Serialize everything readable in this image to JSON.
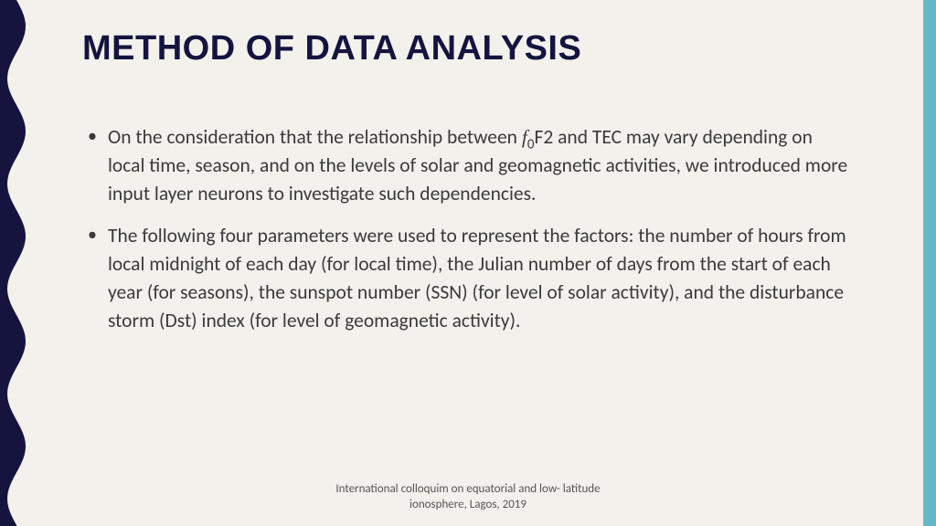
{
  "colors": {
    "background": "#f2f1ec",
    "title": "#14143f",
    "body_text": "#3a3a3a",
    "wave_fill": "#14143f",
    "right_bar": "#62b8c9",
    "footer_text": "#555555"
  },
  "title": "METHOD OF DATA ANALYSIS",
  "bullets": [
    {
      "pre": "On the consideration that the relationship between ",
      "sym_f": "f",
      "sym_sub": "0",
      "post": "F2 and TEC may vary depending on local time, season, and on the levels of solar and geomagnetic activities, we introduced more input layer neurons to investigate such dependencies."
    },
    {
      "text": "The following four parameters were used to represent the factors: the number of hours from local midnight of each day (for local time), the Julian number of days from the start of each year (for seasons), the sunspot number (SSN) (for level of solar activity), and the disturbance storm (Dst) index (for level of geomagnetic activity)."
    }
  ],
  "footer_line1": "International colloquim on equatorial and low- latitude",
  "footer_line2": "ionosphere, Lagos, 2019",
  "left_wave": {
    "amplitude": 10,
    "wavelength": 115,
    "base_width": 18
  }
}
